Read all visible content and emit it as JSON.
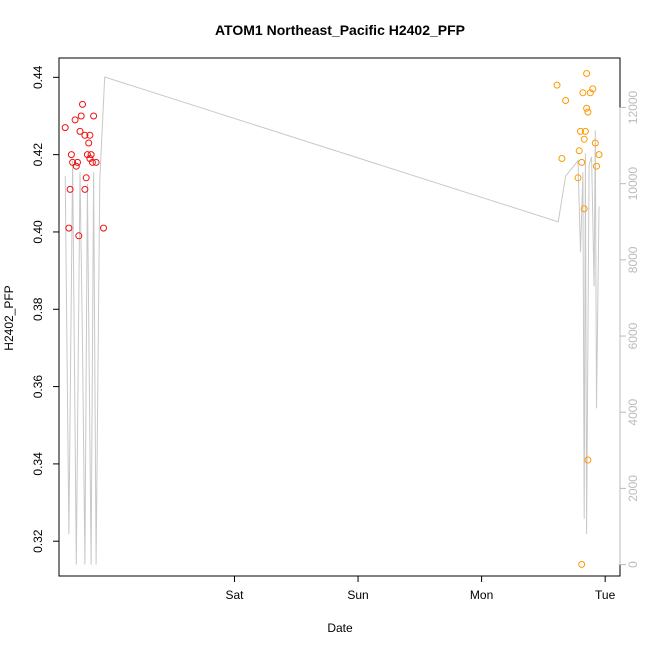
{
  "chart_data": {
    "type": "scatter",
    "title": "ATOM1 Northeast_Pacific H2402_PFP",
    "xlabel": "Date",
    "ylabel": "H2402_PFP",
    "x_ticks": [
      "Sat",
      "Sun",
      "Mon",
      "Tue"
    ],
    "x_tick_positions": [
      1.0,
      2.0,
      3.0,
      4.0
    ],
    "xlim": [
      -0.42,
      4.12
    ],
    "y_ticks": [
      0.32,
      0.34,
      0.36,
      0.38,
      0.4,
      0.42,
      0.44
    ],
    "ylim": [
      0.311,
      0.445
    ],
    "y2_ticks": [
      0,
      2000,
      4000,
      6000,
      8000,
      10000,
      12000
    ],
    "y2lim": [
      -300,
      13300
    ],
    "grid": false,
    "colors": {
      "series_a": "#ee1111",
      "series_b": "#ff9900",
      "altitude": "#c8c8c8",
      "axis": "#000000",
      "right_axis": "#bbbbbb"
    },
    "series": [
      {
        "color": "#ee1111",
        "points": [
          [
            -0.37,
            0.427
          ],
          [
            -0.34,
            0.401
          ],
          [
            -0.33,
            0.411
          ],
          [
            -0.32,
            0.42
          ],
          [
            -0.31,
            0.418
          ],
          [
            -0.29,
            0.429
          ],
          [
            -0.28,
            0.417
          ],
          [
            -0.27,
            0.418
          ],
          [
            -0.26,
            0.399
          ],
          [
            -0.25,
            0.426
          ],
          [
            -0.24,
            0.43
          ],
          [
            -0.23,
            0.433
          ],
          [
            -0.21,
            0.425
          ],
          [
            -0.21,
            0.411
          ],
          [
            -0.2,
            0.414
          ],
          [
            -0.19,
            0.42
          ],
          [
            -0.18,
            0.423
          ],
          [
            -0.17,
            0.425
          ],
          [
            -0.17,
            0.419
          ],
          [
            -0.16,
            0.42
          ],
          [
            -0.15,
            0.418
          ],
          [
            -0.14,
            0.43
          ],
          [
            -0.12,
            0.418
          ],
          [
            -0.06,
            0.401
          ]
        ]
      },
      {
        "color": "#ff9900",
        "points": [
          [
            3.61,
            0.438
          ],
          [
            3.65,
            0.419
          ],
          [
            3.68,
            0.434
          ],
          [
            3.78,
            0.414
          ],
          [
            3.79,
            0.421
          ],
          [
            3.8,
            0.426
          ],
          [
            3.81,
            0.418
          ],
          [
            3.81,
            0.314
          ],
          [
            3.82,
            0.436
          ],
          [
            3.83,
            0.424
          ],
          [
            3.83,
            0.406
          ],
          [
            3.84,
            0.426
          ],
          [
            3.85,
            0.441
          ],
          [
            3.85,
            0.432
          ],
          [
            3.86,
            0.431
          ],
          [
            3.86,
            0.341
          ],
          [
            3.88,
            0.436
          ],
          [
            3.9,
            0.437
          ],
          [
            3.92,
            0.423
          ],
          [
            3.93,
            0.417
          ],
          [
            3.95,
            0.42
          ]
        ]
      }
    ],
    "altitude_line": {
      "color": "#c8c8c8",
      "axis": "right",
      "points": [
        [
          -0.37,
          10200
        ],
        [
          -0.34,
          800
        ],
        [
          -0.31,
          10600
        ],
        [
          -0.28,
          0
        ],
        [
          -0.25,
          10300
        ],
        [
          -0.23,
          5800
        ],
        [
          -0.21,
          0
        ],
        [
          -0.19,
          10000
        ],
        [
          -0.16,
          0
        ],
        [
          -0.14,
          10300
        ],
        [
          -0.12,
          0
        ],
        [
          -0.09,
          10100
        ],
        [
          -0.05,
          12800
        ],
        [
          3.62,
          9000
        ],
        [
          3.68,
          10200
        ],
        [
          3.78,
          10600
        ],
        [
          3.8,
          8200
        ],
        [
          3.82,
          10300
        ],
        [
          3.83,
          1200
        ],
        [
          3.84,
          10800
        ],
        [
          3.85,
          800
        ],
        [
          3.87,
          10500
        ],
        [
          3.89,
          10700
        ],
        [
          3.91,
          7300
        ],
        [
          3.92,
          11400
        ],
        [
          3.93,
          4100
        ],
        [
          3.95,
          9400
        ]
      ]
    }
  }
}
